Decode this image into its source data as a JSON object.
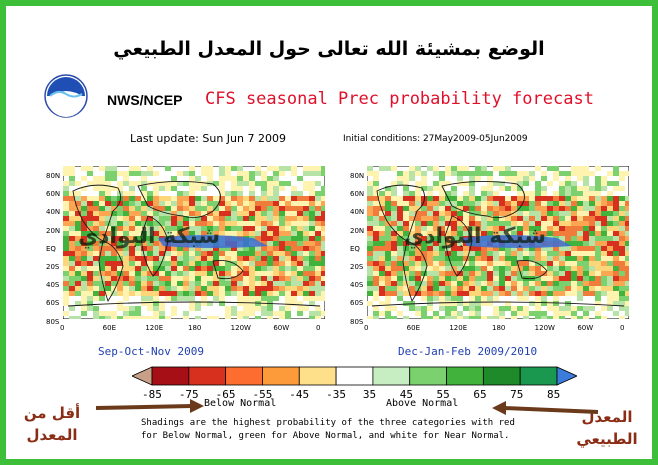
{
  "header": {
    "arabic_title": "الوضع بمشيئة الله تعالى حول المعدل الطبيعي",
    "agency": "NWS/NCEP",
    "title": "CFS seasonal Prec probability forecast",
    "last_update": "Last update: Sun Jun 7 2009",
    "initial_conditions": "Initial conditions: 27May2009-05Jun2009"
  },
  "maps": [
    {
      "season": "Sep-Oct-Nov 2009",
      "watermark": "شبكة البوادي"
    },
    {
      "season": "Dec-Jan-Feb 2009/2010",
      "watermark": "شبكة البوادي"
    }
  ],
  "axes": {
    "lat_labels": [
      "80N",
      "60N",
      "40N",
      "20N",
      "EQ",
      "20S",
      "40S",
      "60S",
      "80S"
    ],
    "lon_labels": [
      "0",
      "60E",
      "120E",
      "180",
      "120W",
      "60W",
      "0"
    ]
  },
  "colorbar": {
    "ticks": [
      "-85",
      "-75",
      "-65",
      "-55",
      "-45",
      "-35",
      "35",
      "45",
      "55",
      "65",
      "75",
      "85"
    ],
    "colors": [
      "#c8a087",
      "#a50f15",
      "#d7301f",
      "#fc6d2f",
      "#fd9b3a",
      "#fee08b",
      "#ffffff",
      "#c7eec2",
      "#7bd16e",
      "#41b33d",
      "#1f8a2a",
      "#1a9850",
      "#3b7bdc"
    ],
    "below_label": "Below Normal",
    "above_label": "Above Normal"
  },
  "note": {
    "line1": "Shadings are the highest probability of the three categories with red",
    "line2": "for Below Normal, green for Above Normal, and white for Near Normal."
  },
  "side_labels": {
    "left_line1": "أقل من",
    "left_line2": "المعدل",
    "right_line1": "المعدل",
    "right_line2": "الطبيعي"
  }
}
